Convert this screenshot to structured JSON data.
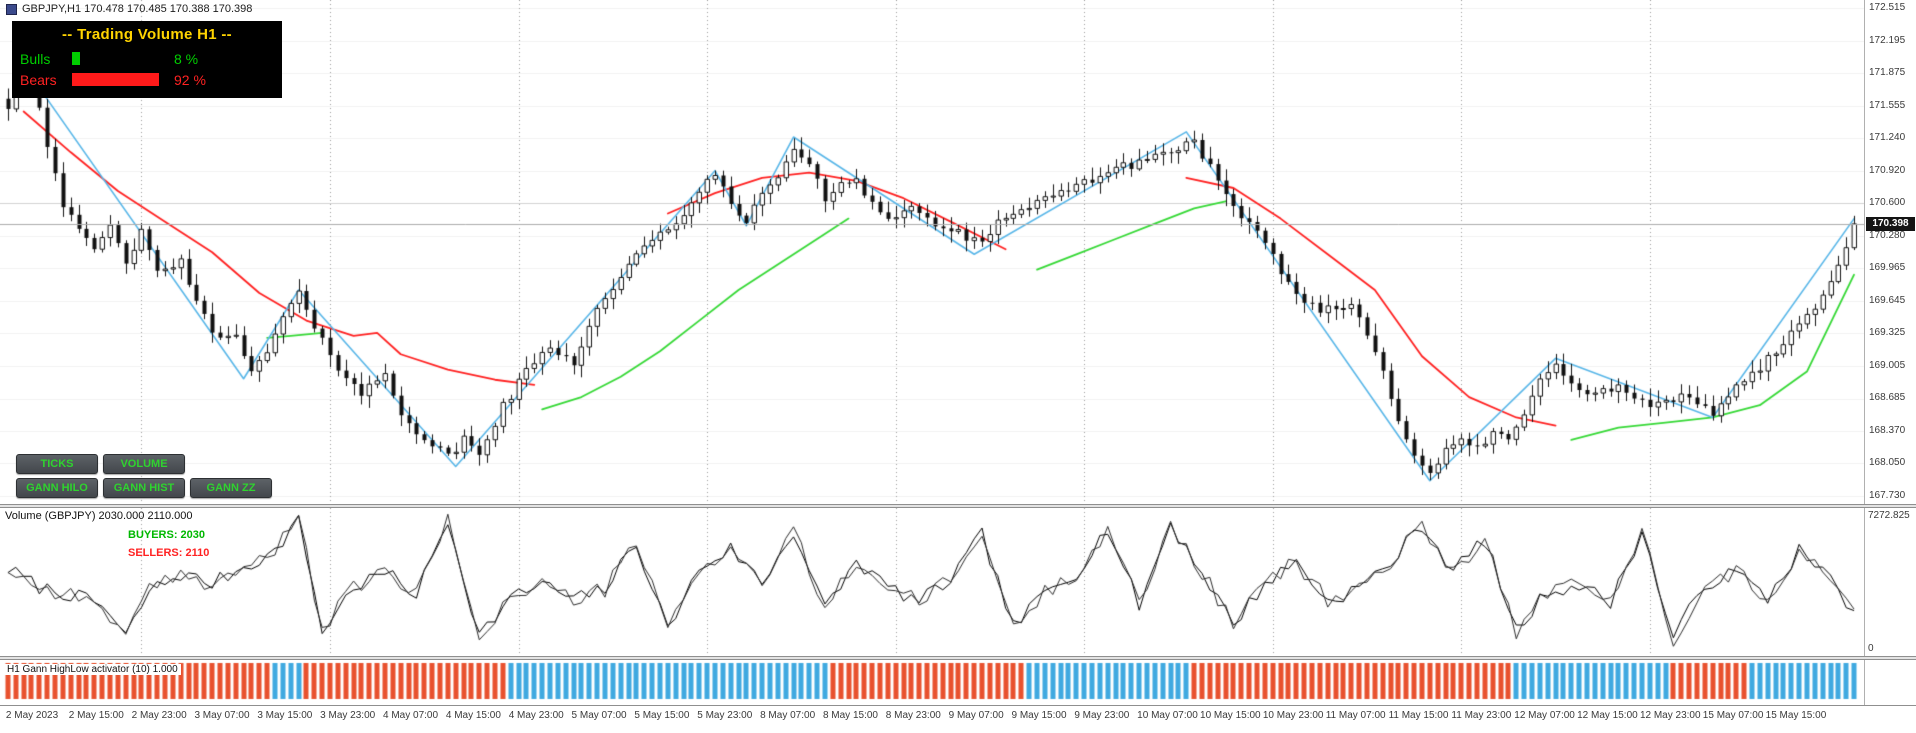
{
  "window": {
    "symbol_info": "GBPJPY,H1  170.478 170.485 170.388 170.398"
  },
  "tv_panel": {
    "title": "-- Trading Volume H1 --",
    "bulls_label": "Bulls",
    "bulls_pct": "8 %",
    "bulls_value": 8,
    "bears_label": "Bears",
    "bears_pct": "92 %",
    "bears_value": 92,
    "title_color": "#ffd400",
    "bulls_color": "#00cf00",
    "bears_color": "#ff1a1a",
    "bg": "#000000"
  },
  "buttons": {
    "row1": [
      {
        "label": "TICKS"
      },
      {
        "label": "VOLUME"
      }
    ],
    "row2": [
      {
        "label": "GANN HILO"
      },
      {
        "label": "GANN HIST"
      },
      {
        "label": "GANN ZZ"
      }
    ],
    "text_color": "#2fd32f",
    "bg": "#4b4f54"
  },
  "price_axis": {
    "ticks": [
      "172.515",
      "172.195",
      "171.875",
      "171.555",
      "171.240",
      "170.920",
      "170.600",
      "170.280",
      "169.965",
      "169.645",
      "169.325",
      "169.005",
      "168.685",
      "168.370",
      "168.050",
      "167.730"
    ],
    "current_price": "170.398"
  },
  "time_axis": {
    "labels": [
      "2 May 2023",
      "2 May 15:00",
      "2 May 23:00",
      "3 May 07:00",
      "3 May 15:00",
      "3 May 23:00",
      "4 May 07:00",
      "4 May 15:00",
      "4 May 23:00",
      "5 May 07:00",
      "5 May 15:00",
      "5 May 23:00",
      "8 May 07:00",
      "8 May 15:00",
      "8 May 23:00",
      "9 May 07:00",
      "9 May 15:00",
      "9 May 23:00",
      "10 May 07:00",
      "10 May 15:00",
      "10 May 23:00",
      "11 May 07:00",
      "11 May 15:00",
      "11 May 23:00",
      "12 May 07:00",
      "12 May 15:00",
      "12 May 23:00",
      "15 May 07:00",
      "15 May 15:00"
    ],
    "bars_per_label": 8
  },
  "volume_pane": {
    "title": "Volume (GBPJPY) 2030.000 2110.000",
    "buyers": "BUYERS: 2030",
    "sellers": "SELLERS: 2110",
    "axis_max": "7272.825",
    "axis_min": "0",
    "buyers_color": "#00b800",
    "sellers_color": "#ff2222"
  },
  "strip_pane": {
    "title": "H1 Gann HighLow activator (10) 1.000",
    "red_color": "#e8512e",
    "blue_color": "#3fa9e0"
  },
  "chart_data": {
    "type": "candlestick",
    "symbol": "GBPJPY",
    "timeframe": "H1",
    "bars": 236,
    "price_range": {
      "max": 172.515,
      "min": 167.73
    },
    "grid_hline": 170.6,
    "bid": 170.398,
    "day_separator_bars": [
      17,
      41,
      65,
      89,
      113,
      137,
      161,
      185,
      209
    ],
    "close_anchors": [
      [
        0,
        171.55
      ],
      [
        1,
        171.95
      ],
      [
        3,
        171.9
      ],
      [
        5,
        171.2
      ],
      [
        7,
        170.6
      ],
      [
        9,
        170.3
      ],
      [
        11,
        170.15
      ],
      [
        13,
        170.35
      ],
      [
        15,
        170.05
      ],
      [
        17,
        170.3
      ],
      [
        19,
        169.9
      ],
      [
        22,
        170.05
      ],
      [
        24,
        169.6
      ],
      [
        27,
        169.25
      ],
      [
        29,
        169.35
      ],
      [
        31,
        168.95
      ],
      [
        33,
        169.1
      ],
      [
        35,
        169.5
      ],
      [
        37,
        169.72
      ],
      [
        39,
        169.35
      ],
      [
        42,
        169.0
      ],
      [
        45,
        168.75
      ],
      [
        48,
        168.9
      ],
      [
        50,
        168.55
      ],
      [
        53,
        168.3
      ],
      [
        56,
        168.1
      ],
      [
        58,
        168.28
      ],
      [
        60,
        168.15
      ],
      [
        63,
        168.6
      ],
      [
        66,
        168.95
      ],
      [
        69,
        169.2
      ],
      [
        72,
        169.05
      ],
      [
        75,
        169.55
      ],
      [
        78,
        169.9
      ],
      [
        81,
        170.15
      ],
      [
        84,
        170.35
      ],
      [
        87,
        170.6
      ],
      [
        90,
        170.88
      ],
      [
        92,
        170.6
      ],
      [
        94,
        170.45
      ],
      [
        97,
        170.75
      ],
      [
        100,
        171.15
      ],
      [
        102,
        170.95
      ],
      [
        104,
        170.65
      ],
      [
        106,
        170.8
      ],
      [
        108,
        170.85
      ],
      [
        110,
        170.6
      ],
      [
        112,
        170.45
      ],
      [
        115,
        170.55
      ],
      [
        118,
        170.4
      ],
      [
        121,
        170.3
      ],
      [
        124,
        170.18
      ],
      [
        127,
        170.5
      ],
      [
        130,
        170.55
      ],
      [
        133,
        170.65
      ],
      [
        136,
        170.78
      ],
      [
        139,
        170.88
      ],
      [
        142,
        170.95
      ],
      [
        145,
        171.05
      ],
      [
        148,
        171.1
      ],
      [
        151,
        171.22
      ],
      [
        153,
        170.95
      ],
      [
        155,
        170.65
      ],
      [
        157,
        170.45
      ],
      [
        160,
        170.2
      ],
      [
        162,
        169.95
      ],
      [
        164,
        169.7
      ],
      [
        166,
        169.6
      ],
      [
        168,
        169.55
      ],
      [
        171,
        169.6
      ],
      [
        173,
        169.35
      ],
      [
        175,
        168.95
      ],
      [
        177,
        168.5
      ],
      [
        179,
        168.15
      ],
      [
        181,
        167.95
      ],
      [
        183,
        168.15
      ],
      [
        185,
        168.28
      ],
      [
        187,
        168.2
      ],
      [
        189,
        168.32
      ],
      [
        191,
        168.28
      ],
      [
        193,
        168.5
      ],
      [
        195,
        168.9
      ],
      [
        197,
        169.05
      ],
      [
        199,
        168.85
      ],
      [
        201,
        168.7
      ],
      [
        203,
        168.75
      ],
      [
        205,
        168.8
      ],
      [
        207,
        168.7
      ],
      [
        209,
        168.6
      ],
      [
        211,
        168.65
      ],
      [
        213,
        168.7
      ],
      [
        215,
        168.6
      ],
      [
        217,
        168.55
      ],
      [
        219,
        168.7
      ],
      [
        221,
        168.9
      ],
      [
        223,
        169.0
      ],
      [
        225,
        169.15
      ],
      [
        227,
        169.3
      ],
      [
        229,
        169.5
      ],
      [
        231,
        169.7
      ],
      [
        233,
        169.95
      ],
      [
        234,
        170.2
      ],
      [
        235,
        170.4
      ]
    ],
    "zigzag": [
      [
        2,
        171.95
      ],
      [
        30,
        168.88
      ],
      [
        37,
        169.75
      ],
      [
        57,
        168.02
      ],
      [
        90,
        170.92
      ],
      [
        94,
        170.38
      ],
      [
        100,
        171.25
      ],
      [
        123,
        170.1
      ],
      [
        150,
        171.3
      ],
      [
        181,
        167.88
      ],
      [
        197,
        169.08
      ],
      [
        217,
        168.5
      ],
      [
        235,
        170.45
      ]
    ],
    "zigzag_color": "#58b6e8",
    "hilo_red_color": "#ff2020",
    "hilo_green_color": "#35d835",
    "hilo_red": [
      [
        [
          2,
          171.5
        ],
        [
          8,
          171.1
        ],
        [
          14,
          170.72
        ],
        [
          20,
          170.42
        ],
        [
          26,
          170.12
        ],
        [
          32,
          169.72
        ],
        [
          38,
          169.45
        ],
        [
          44,
          169.3
        ],
        [
          47,
          169.33
        ],
        [
          50,
          169.12
        ],
        [
          56,
          168.97
        ],
        [
          62,
          168.87
        ],
        [
          67,
          168.82
        ]
      ],
      [
        [
          84,
          170.5
        ],
        [
          90,
          170.7
        ],
        [
          96,
          170.85
        ],
        [
          102,
          170.9
        ],
        [
          108,
          170.82
        ],
        [
          114,
          170.65
        ],
        [
          120,
          170.42
        ],
        [
          127,
          170.15
        ]
      ],
      [
        [
          150,
          170.85
        ],
        [
          156,
          170.75
        ],
        [
          162,
          170.45
        ],
        [
          168,
          170.1
        ],
        [
          174,
          169.75
        ],
        [
          180,
          169.1
        ],
        [
          186,
          168.7
        ],
        [
          192,
          168.5
        ],
        [
          197,
          168.42
        ]
      ]
    ],
    "hilo_green": [
      [
        [
          33,
          169.28
        ],
        [
          36,
          169.3
        ],
        [
          40,
          169.33
        ]
      ],
      [
        [
          68,
          168.58
        ],
        [
          73,
          168.7
        ],
        [
          78,
          168.9
        ],
        [
          83,
          169.15
        ],
        [
          88,
          169.45
        ],
        [
          93,
          169.75
        ],
        [
          98,
          170.0
        ],
        [
          103,
          170.25
        ],
        [
          107,
          170.45
        ]
      ],
      [
        [
          131,
          169.95
        ],
        [
          136,
          170.1
        ],
        [
          141,
          170.25
        ],
        [
          146,
          170.4
        ],
        [
          151,
          170.55
        ],
        [
          155,
          170.62
        ]
      ],
      [
        [
          199,
          168.28
        ],
        [
          205,
          168.4
        ],
        [
          211,
          168.45
        ],
        [
          217,
          168.5
        ],
        [
          223,
          168.62
        ],
        [
          229,
          168.95
        ],
        [
          235,
          169.9
        ]
      ]
    ],
    "volume": {
      "max": 7272.825,
      "buyers_last": 2030,
      "sellers_last": 2110,
      "anchors": [
        [
          0,
          4300
        ],
        [
          4,
          3300
        ],
        [
          8,
          2900
        ],
        [
          12,
          2300
        ],
        [
          15,
          600
        ],
        [
          18,
          3100
        ],
        [
          22,
          4000
        ],
        [
          26,
          3500
        ],
        [
          30,
          4400
        ],
        [
          34,
          5200
        ],
        [
          37,
          7150
        ],
        [
          40,
          900
        ],
        [
          44,
          3300
        ],
        [
          48,
          4100
        ],
        [
          52,
          2900
        ],
        [
          56,
          6950
        ],
        [
          60,
          700
        ],
        [
          64,
          2700
        ],
        [
          68,
          3500
        ],
        [
          72,
          2600
        ],
        [
          76,
          3200
        ],
        [
          80,
          5700
        ],
        [
          84,
          1000
        ],
        [
          88,
          4300
        ],
        [
          92,
          5400
        ],
        [
          96,
          3500
        ],
        [
          100,
          6350
        ],
        [
          104,
          2100
        ],
        [
          108,
          4700
        ],
        [
          112,
          3300
        ],
        [
          116,
          2500
        ],
        [
          120,
          3700
        ],
        [
          124,
          6150
        ],
        [
          128,
          1100
        ],
        [
          132,
          3000
        ],
        [
          136,
          4100
        ],
        [
          140,
          6500
        ],
        [
          144,
          2300
        ],
        [
          148,
          6750
        ],
        [
          152,
          4100
        ],
        [
          156,
          1300
        ],
        [
          160,
          3500
        ],
        [
          164,
          4700
        ],
        [
          168,
          2500
        ],
        [
          172,
          3300
        ],
        [
          176,
          4600
        ],
        [
          180,
          6700
        ],
        [
          184,
          4200
        ],
        [
          188,
          5900
        ],
        [
          192,
          900
        ],
        [
          196,
          3100
        ],
        [
          200,
          3400
        ],
        [
          204,
          2500
        ],
        [
          208,
          6300
        ],
        [
          212,
          500
        ],
        [
          216,
          3500
        ],
        [
          220,
          4100
        ],
        [
          224,
          2700
        ],
        [
          228,
          5300
        ],
        [
          232,
          3700
        ],
        [
          235,
          2030
        ]
      ]
    },
    "activator_segments": [
      [
        "red",
        0,
        34
      ],
      [
        "blue",
        34,
        38
      ],
      [
        "red",
        38,
        64
      ],
      [
        "blue",
        64,
        105
      ],
      [
        "red",
        105,
        130
      ],
      [
        "blue",
        130,
        151
      ],
      [
        "red",
        151,
        192
      ],
      [
        "blue",
        192,
        212
      ],
      [
        "red",
        212,
        222
      ],
      [
        "blue",
        222,
        236
      ]
    ]
  }
}
